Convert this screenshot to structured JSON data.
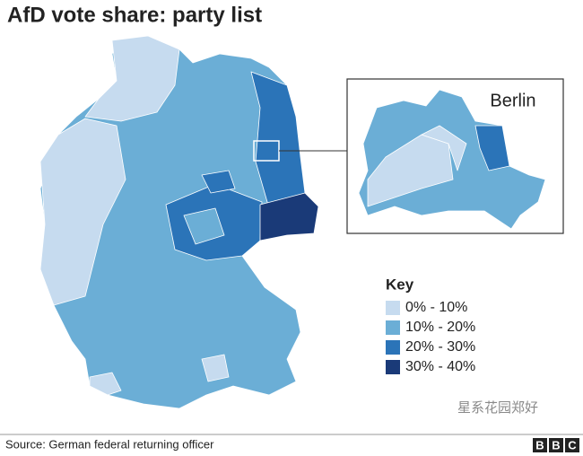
{
  "title": "AfD vote share: party list",
  "inset": {
    "label": "Berlin"
  },
  "legend": {
    "title": "Key",
    "items": [
      {
        "label": "0% - 10%",
        "color": "#c6dbef"
      },
      {
        "label": "10% - 20%",
        "color": "#6baed6"
      },
      {
        "label": "20% - 30%",
        "color": "#2b74b8"
      },
      {
        "label": "30% - 40%",
        "color": "#1a3a78"
      }
    ]
  },
  "source": "Source: German federal returning officer",
  "watermark": "星系花园郑好",
  "logo": "BBC"
}
